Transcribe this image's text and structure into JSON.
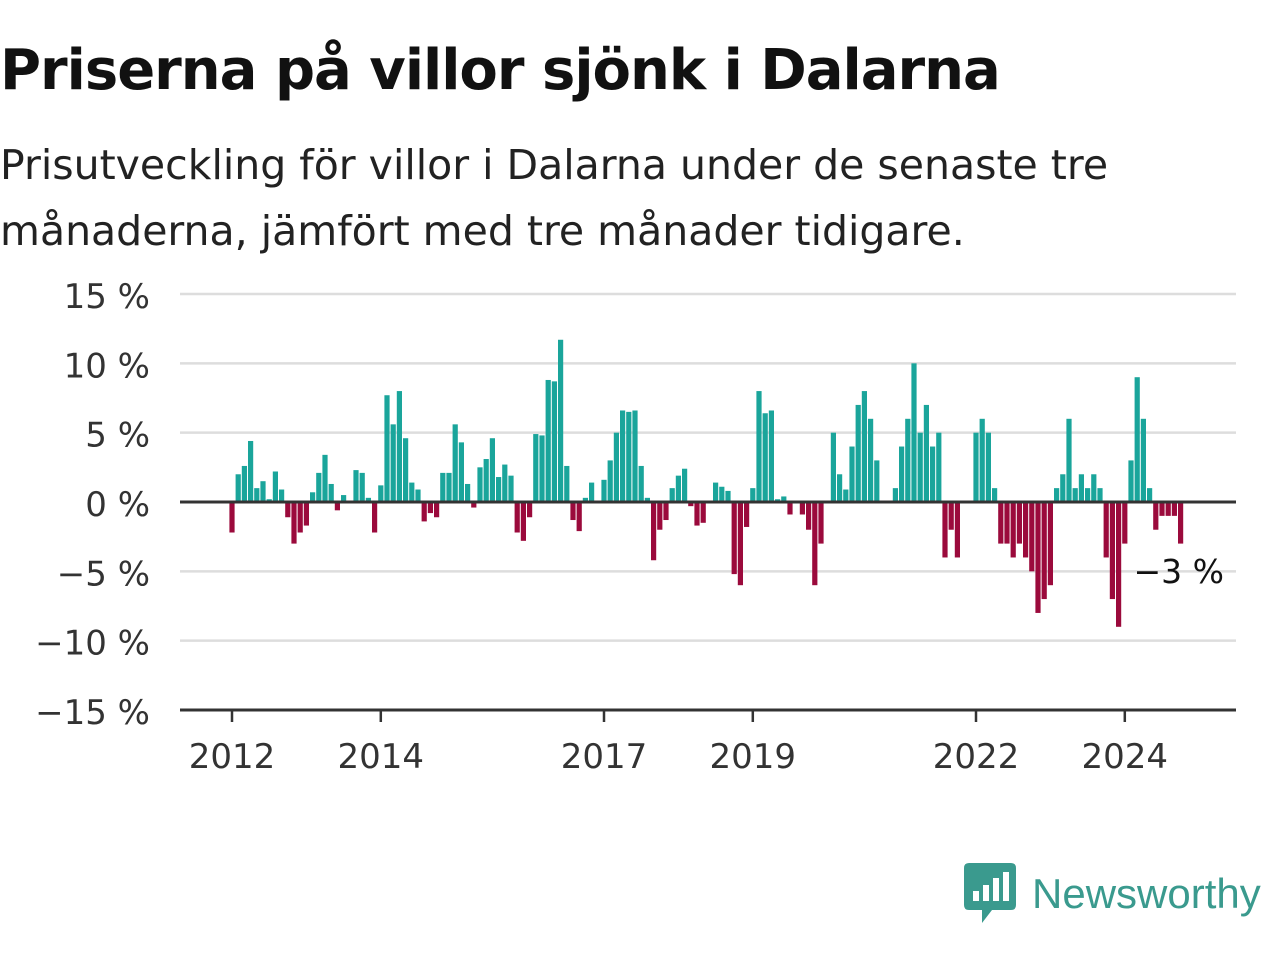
{
  "title": "Priserna på villor sjönk i Dalarna",
  "subtitle": "Prisutveckling för villor i Dalarna under de senaste tre månaderna, jämfört med tre månader tidigare.",
  "brand": "Newsworthy",
  "colors": {
    "positive": "#1aa59b",
    "negative": "#9b0a3c",
    "grid": "#dddddd",
    "axis": "#333333",
    "brand": "#3a9a8e"
  },
  "chart_data": {
    "type": "bar",
    "ylim": [
      -15,
      15
    ],
    "y_ticks": [
      15,
      10,
      5,
      0,
      -5,
      -10,
      -15
    ],
    "y_tick_labels": [
      "15 %",
      "10 %",
      "5 %",
      "0 %",
      "−5 %",
      "−10 %",
      "−15 %"
    ],
    "x_ticks": [
      {
        "label": "2012",
        "year": 2012
      },
      {
        "label": "2014",
        "year": 2014
      },
      {
        "label": "2017",
        "year": 2017
      },
      {
        "label": "2019",
        "year": 2019
      },
      {
        "label": "2022",
        "year": 2022
      },
      {
        "label": "2024",
        "year": 2024
      }
    ],
    "start": "2012-01",
    "frequency": "monthly",
    "grid": true,
    "last_value_label": "−3 %",
    "values": [
      -2.2,
      2.0,
      2.6,
      4.4,
      1.0,
      1.5,
      0.2,
      2.2,
      0.9,
      -1.1,
      -3.0,
      -2.2,
      -1.7,
      0.7,
      2.1,
      3.4,
      1.3,
      -0.6,
      0.5,
      0.1,
      2.3,
      2.1,
      0.3,
      -2.2,
      1.2,
      7.7,
      5.6,
      8.0,
      4.6,
      1.4,
      0.9,
      -1.4,
      -0.8,
      -1.1,
      2.1,
      2.1,
      5.6,
      4.3,
      1.3,
      -0.4,
      2.5,
      3.1,
      4.6,
      1.8,
      2.7,
      1.9,
      -2.2,
      -2.8,
      -1.1,
      4.9,
      4.8,
      8.8,
      8.7,
      11.7,
      2.6,
      -1.3,
      -2.1,
      0.3,
      1.4,
      0.1,
      1.6,
      3.0,
      5.0,
      6.6,
      6.5,
      6.6,
      2.6,
      0.3,
      -4.2,
      -2.0,
      -1.3,
      1.0,
      1.9,
      2.4,
      -0.3,
      -1.7,
      -1.5,
      0.1,
      1.4,
      1.1,
      0.8,
      -5.2,
      -6.0,
      -1.8,
      1.0,
      8.0,
      6.4,
      6.6,
      0.2,
      0.4,
      -0.9,
      0.1,
      -0.9,
      -2.0,
      -6.0,
      -3.0,
      0.1,
      5.0,
      2.0,
      0.9,
      4.0,
      7.0,
      8.0,
      6.0,
      3.0,
      0.1,
      0.1,
      1.0,
      4.0,
      6.0,
      10.0,
      5.0,
      7.0,
      4.0,
      5.0,
      -4.0,
      -2.0,
      -4.0,
      0.1,
      0.1,
      5.0,
      6.0,
      5.0,
      1.0,
      -3.0,
      -3.0,
      -4.0,
      -3.0,
      -4.0,
      -5.0,
      -8.0,
      -7.0,
      -6.0,
      1.0,
      2.0,
      6.0,
      1.0,
      2.0,
      1.0,
      2.0,
      1.0,
      -4.0,
      -7.0,
      -9.0,
      -3.0,
      3.0,
      9.0,
      6.0,
      1.0,
      -2.0,
      -1.0,
      -1.0,
      -1.0,
      -3.0
    ]
  }
}
